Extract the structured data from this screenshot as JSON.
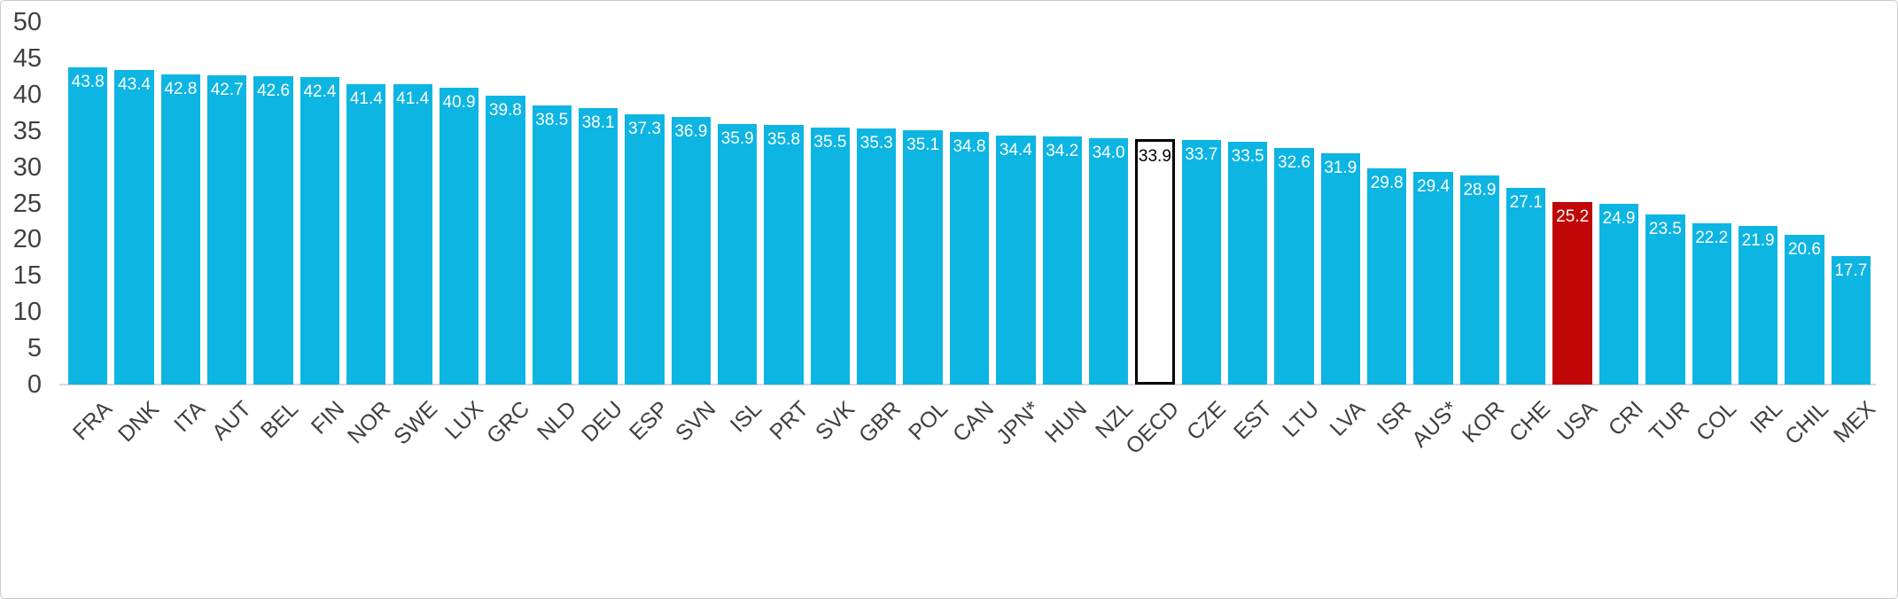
{
  "chart_data": {
    "type": "bar",
    "title": "",
    "categories": [
      "FRA",
      "DNK",
      "ITA",
      "AUT",
      "BEL",
      "FIN",
      "NOR",
      "SWE",
      "LUX",
      "GRC",
      "NLD",
      "DEU",
      "ESP",
      "SVN",
      "ISL",
      "PRT",
      "SVK",
      "GBR",
      "POL",
      "CAN",
      "JPN*",
      "HUN",
      "NZL",
      "OECD",
      "CZE",
      "EST",
      "LTU",
      "LVA",
      "ISR",
      "AUS*",
      "KOR",
      "CHE",
      "USA",
      "CRI",
      "TUR",
      "COL",
      "IRL",
      "CHIL",
      "MEX"
    ],
    "values": [
      43.8,
      43.4,
      42.8,
      42.7,
      42.6,
      42.4,
      41.4,
      41.4,
      40.9,
      39.8,
      38.5,
      38.1,
      37.3,
      36.9,
      35.9,
      35.8,
      35.5,
      35.3,
      35.1,
      34.8,
      34.4,
      34.2,
      34.0,
      33.9,
      33.7,
      33.5,
      32.6,
      31.9,
      29.8,
      29.4,
      28.9,
      27.1,
      25.2,
      24.9,
      23.5,
      22.2,
      21.9,
      20.6,
      17.7
    ],
    "value_labels": [
      "43.8",
      "43.4",
      "42.8",
      "42.7",
      "42.6",
      "42.4",
      "41.4",
      "41.4",
      "40.9",
      "39.8",
      "38.5",
      "38.1",
      "37.3",
      "36.9",
      "35.9",
      "35.8",
      "35.5",
      "35.3",
      "35.1",
      "34.8",
      "34.4",
      "34.2",
      "34.0",
      "33.9",
      "33.7",
      "33.5",
      "32.6",
      "31.9",
      "29.8",
      "29.4",
      "28.9",
      "27.1",
      "25.2",
      "24.9",
      "23.5",
      "22.2",
      "21.9",
      "20.6",
      "17.7"
    ],
    "bar_styles": [
      "default",
      "default",
      "default",
      "default",
      "default",
      "default",
      "default",
      "default",
      "default",
      "default",
      "default",
      "default",
      "default",
      "default",
      "default",
      "default",
      "default",
      "default",
      "default",
      "default",
      "default",
      "default",
      "default",
      "outline",
      "default",
      "default",
      "default",
      "default",
      "default",
      "default",
      "default",
      "default",
      "red",
      "default",
      "default",
      "default",
      "default",
      "default",
      "default"
    ],
    "xlabel": "",
    "ylabel": "",
    "y_axis": {
      "min": 0,
      "max": 50,
      "ticks": [
        0,
        5,
        10,
        15,
        20,
        25,
        30,
        35,
        40,
        45,
        50
      ]
    },
    "grid": "off",
    "legend": "none",
    "colors": {
      "bar_default": "#0db5e3",
      "bar_highlight_red": "#c00606",
      "bar_outline_fill": "#ffffff",
      "bar_outline_border": "#000000",
      "value_label": "#ffffff",
      "value_label_on_outline": "#000000",
      "axis_label": "#404040",
      "axis_line": "#d9d9d9",
      "frame_border": "#c9c9c9"
    }
  }
}
